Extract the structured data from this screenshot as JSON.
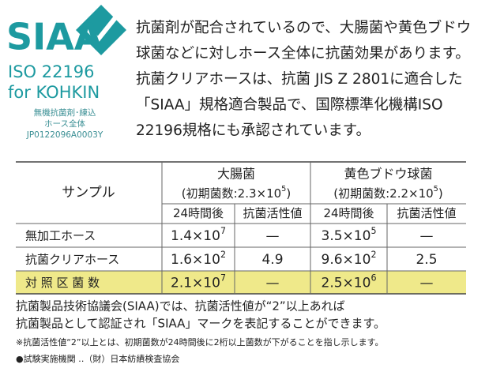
{
  "logo": {
    "mark": "SIAA",
    "iso": "ISO 22196",
    "for": "for KOHKIN",
    "lines": [
      "無機抗菌剤･練込",
      "ホース全体",
      "JP0122096A0003Y"
    ]
  },
  "intro": [
    "抗菌剤が配合されているので、大腸菌や黄色ブドウ",
    "球菌などに対しホース全体に抗菌効果があります。",
    "抗菌クリアホースは、抗菌 JIS Z 2801に適合した",
    "「SIAA」規格適合製品で、国際標準化機構ISO",
    "22196規格にも承認されています。"
  ],
  "table": {
    "sample_header": "サンプル",
    "groups": [
      {
        "name": "大腸菌",
        "initial": {
          "base": "(初期菌数:2.3×10",
          "exp": "5",
          "tail": ")"
        }
      },
      {
        "name": "黄色ブドウ球菌",
        "initial": {
          "base": "(初期菌数:2.2×10",
          "exp": "5",
          "tail": ")"
        }
      }
    ],
    "subheaders": [
      "24時間後",
      "抗菌活性値",
      "24時間後",
      "抗菌活性値"
    ],
    "rows": [
      {
        "label": "無加工ホース",
        "cells": [
          {
            "base": "1.4×10",
            "exp": "7"
          },
          "—",
          {
            "base": "3.5×10",
            "exp": "5"
          },
          "—"
        ]
      },
      {
        "label": "抗菌クリアホース",
        "cells": [
          {
            "base": "1.6×10",
            "exp": "2"
          },
          "4.9",
          {
            "base": "9.6×10",
            "exp": "2"
          },
          "2.5"
        ]
      },
      {
        "label": "対 照 区 菌 数",
        "cells": [
          {
            "base": "2.1×10",
            "exp": "7"
          },
          "—",
          {
            "base": "2.5×10",
            "exp": "6"
          },
          "—"
        ]
      }
    ]
  },
  "footer": [
    "抗菌製品技術協議会(SIAA)では、抗菌活性値が“2”以上あれば",
    "抗菌製品として認証され「SIAA」マークを表記することができます。"
  ],
  "note": "※抗菌活性値“2”以上とは、初期菌数が24時間後に2桁以上菌数が下がることを指し示します。",
  "lab": "●試験実施機関 ‥（財）日本紡績検査協会"
}
